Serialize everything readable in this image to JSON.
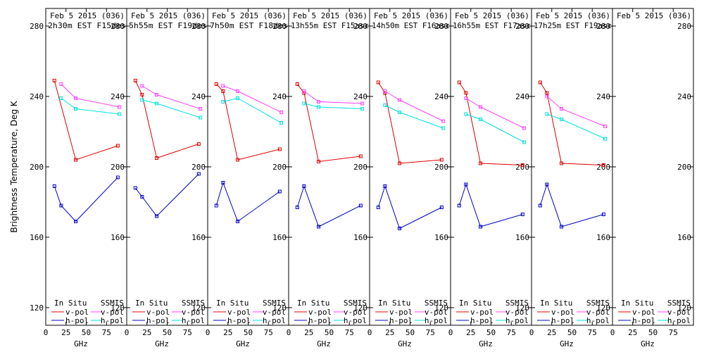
{
  "chart_data": {
    "type": "line",
    "ylabel": "Brightness Temperature, Deg K",
    "xlabel": "GHz",
    "ylim": [
      110,
      290
    ],
    "xlim": [
      0,
      100
    ],
    "yticks": [
      120,
      160,
      200,
      240,
      280
    ],
    "xticks": [
      0,
      25,
      50,
      75
    ],
    "grid": false,
    "colors": {
      "v_insitu": "#e00000",
      "h_insitu": "#0000c8",
      "v_ssmis": "#ff40ff",
      "h_ssmis": "#00e0e0"
    },
    "legend": {
      "insitu_title": "In Situ",
      "ssmis_title": "SSMIS",
      "v_label": "v-pol",
      "h_label": "h-pol"
    },
    "panels": [
      {
        "date": "Feb 5 2015 (036)",
        "time": "2h30m EST F15des",
        "series": [
          {
            "key": "v_insitu",
            "x": [
              10.7,
              37,
              89
            ],
            "y": [
              249,
              204,
              212
            ]
          },
          {
            "key": "h_insitu",
            "x": [
              10.7,
              19,
              37,
              89
            ],
            "y": [
              189,
              178,
              169,
              194
            ]
          },
          {
            "key": "v_ssmis",
            "x": [
              19,
              37,
              91
            ],
            "y": [
              247,
              239,
              234
            ]
          },
          {
            "key": "h_ssmis",
            "x": [
              19,
              37,
              91
            ],
            "y": [
              239,
              233,
              230
            ]
          }
        ]
      },
      {
        "date": "Feb 5 2015 (036)",
        "time": "5h55m EST F19des",
        "series": [
          {
            "key": "v_insitu",
            "x": [
              10.7,
              19,
              37,
              89
            ],
            "y": [
              249,
              241,
              205,
              213
            ]
          },
          {
            "key": "h_insitu",
            "x": [
              10.7,
              19,
              37,
              89
            ],
            "y": [
              188,
              183,
              172,
              196
            ]
          },
          {
            "key": "v_ssmis",
            "x": [
              19,
              37,
              91
            ],
            "y": [
              246,
              241,
              233
            ]
          },
          {
            "key": "h_ssmis",
            "x": [
              19,
              37,
              91
            ],
            "y": [
              238,
              236,
              228
            ]
          }
        ]
      },
      {
        "date": "Feb 5 2015 (036)",
        "time": "7h50m EST F18des",
        "series": [
          {
            "key": "v_insitu",
            "x": [
              10.7,
              19,
              37,
              89
            ],
            "y": [
              247,
              243,
              204,
              210
            ]
          },
          {
            "key": "h_insitu",
            "x": [
              10.7,
              19,
              37,
              89
            ],
            "y": [
              178,
              191,
              169,
              186
            ]
          },
          {
            "key": "v_ssmis",
            "x": [
              19,
              37,
              91
            ],
            "y": [
              246,
              243,
              231
            ]
          },
          {
            "key": "h_ssmis",
            "x": [
              19,
              37,
              91
            ],
            "y": [
              237,
              239,
              225
            ]
          }
        ]
      },
      {
        "date": "Feb 5 2015 (036)",
        "time": "13h55m EST F15asc",
        "series": [
          {
            "key": "v_insitu",
            "x": [
              10.7,
              19,
              37,
              89
            ],
            "y": [
              247,
              242,
              203,
              206
            ]
          },
          {
            "key": "h_insitu",
            "x": [
              10.7,
              19,
              37,
              89
            ],
            "y": [
              177,
              189,
              166,
              178
            ]
          },
          {
            "key": "v_ssmis",
            "x": [
              19,
              37,
              91
            ],
            "y": [
              243,
              237,
              236
            ]
          },
          {
            "key": "h_ssmis",
            "x": [
              19,
              37,
              91
            ],
            "y": [
              236,
              234,
              233
            ]
          }
        ]
      },
      {
        "date": "Feb 5 2015 (036)",
        "time": "14h50m EST F16asc",
        "series": [
          {
            "key": "v_insitu",
            "x": [
              10.7,
              19,
              37,
              89
            ],
            "y": [
              248,
              242,
              202,
              204
            ]
          },
          {
            "key": "h_insitu",
            "x": [
              10.7,
              19,
              37,
              89
            ],
            "y": [
              177,
              189,
              165,
              177
            ]
          },
          {
            "key": "v_ssmis",
            "x": [
              19,
              37,
              91
            ],
            "y": [
              243,
              238,
              226
            ]
          },
          {
            "key": "h_ssmis",
            "x": [
              19,
              37,
              91
            ],
            "y": [
              235,
              231,
              222
            ]
          }
        ]
      },
      {
        "date": "Feb 5 2015 (036)",
        "time": "16h55m EST F17asc",
        "series": [
          {
            "key": "v_insitu",
            "x": [
              10.7,
              19,
              37,
              89
            ],
            "y": [
              248,
              242,
              202,
              201
            ]
          },
          {
            "key": "h_insitu",
            "x": [
              10.7,
              19,
              37,
              89
            ],
            "y": [
              178,
              190,
              166,
              173
            ]
          },
          {
            "key": "v_ssmis",
            "x": [
              19,
              37,
              91
            ],
            "y": [
              239,
              234,
              222
            ]
          },
          {
            "key": "h_ssmis",
            "x": [
              19,
              37,
              91
            ],
            "y": [
              230,
              227,
              214
            ]
          }
        ]
      },
      {
        "date": "Feb 5 2015 (036)",
        "time": "17h25m EST F19asc",
        "series": [
          {
            "key": "v_insitu",
            "x": [
              10.7,
              19,
              37,
              89
            ],
            "y": [
              248,
              242,
              202,
              201
            ]
          },
          {
            "key": "h_insitu",
            "x": [
              10.7,
              19,
              37,
              89
            ],
            "y": [
              178,
              190,
              166,
              173
            ]
          },
          {
            "key": "v_ssmis",
            "x": [
              19,
              37,
              91
            ],
            "y": [
              240,
              233,
              223
            ]
          },
          {
            "key": "h_ssmis",
            "x": [
              19,
              37,
              91
            ],
            "y": [
              230,
              227,
              216
            ]
          }
        ]
      },
      {
        "date": "Feb 5 2015 (036)",
        "time": "",
        "series": []
      }
    ]
  }
}
